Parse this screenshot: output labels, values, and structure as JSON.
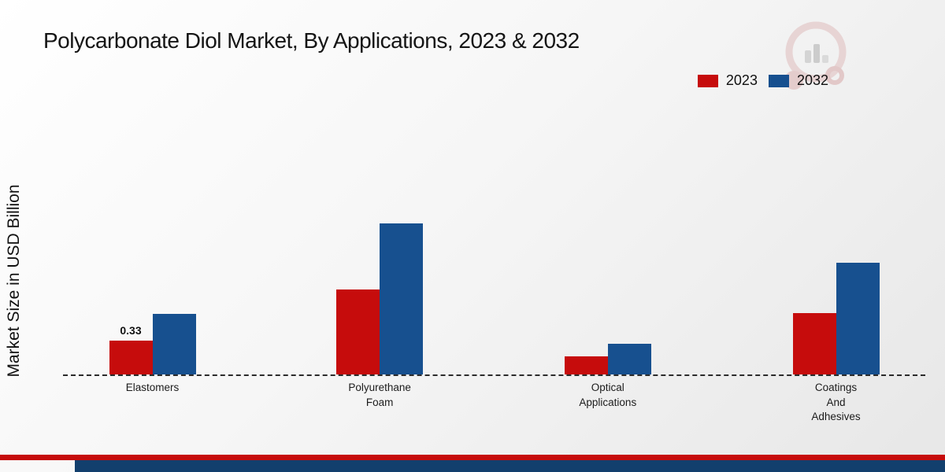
{
  "title": "Polycarbonate Diol Market, By Applications, 2023 & 2032",
  "ylabel": "Market Size in USD Billion",
  "legend": [
    {
      "label": "2023",
      "color": "#c60c0c"
    },
    {
      "label": "2032",
      "color": "#17508f"
    }
  ],
  "footer": {
    "red_strip_color": "#c60c0c",
    "navy_strip_color": "#123f6d"
  },
  "chart_data": {
    "type": "bar",
    "title": "Polycarbonate Diol Market, By Applications, 2023 & 2032",
    "xlabel": "",
    "ylabel": "Market Size in USD Billion",
    "units": "USD Billion",
    "grid": false,
    "legend_position": "top-right",
    "baseline_style": "dashed",
    "categories": [
      "Elastomers",
      "Polyurethane Foam",
      "Optical Applications",
      "Coatings And Adhesives"
    ],
    "category_label_lines": [
      [
        "Elastomers"
      ],
      [
        "Polyurethane",
        "Foam"
      ],
      [
        "Optical",
        "Applications"
      ],
      [
        "Coatings",
        "And",
        "Adhesives"
      ]
    ],
    "series": [
      {
        "name": "2023",
        "color": "#c60c0c",
        "values": [
          0.33,
          0.83,
          0.18,
          0.6
        ],
        "labels": [
          "0.33",
          null,
          null,
          null
        ]
      },
      {
        "name": "2032",
        "color": "#17508f",
        "values": [
          0.59,
          1.48,
          0.3,
          1.09
        ],
        "labels": [
          null,
          null,
          null,
          null
        ]
      }
    ],
    "ylim": [
      0,
      1.6
    ]
  }
}
